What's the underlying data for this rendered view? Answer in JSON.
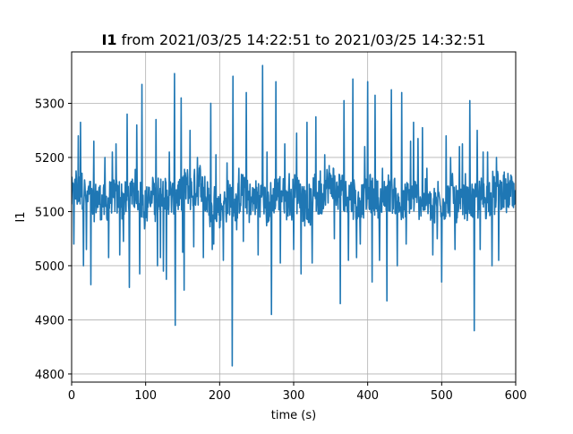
{
  "chart_data": {
    "type": "line",
    "title": {
      "bold": "I1",
      "rest": " from 2021/03/25 14:22:51 to 2021/03/25 14:32:51"
    },
    "xlabel": "time (s)",
    "ylabel": "I1",
    "xlim": [
      0,
      600
    ],
    "ylim": [
      4785,
      5395
    ],
    "xticks": [
      0,
      100,
      200,
      300,
      400,
      500,
      600
    ],
    "yticks": [
      4800,
      4900,
      5000,
      5100,
      5200,
      5300
    ],
    "grid": true,
    "legend": "none",
    "colors": {
      "series": "#1f77b4",
      "grid": "#b0b0b0",
      "axis": "#000000"
    },
    "series": [
      {
        "color": "#1f77b4",
        "baseline": 5125,
        "x_start": 0,
        "x_end": 600,
        "x_step": 0.5,
        "spikes": [
          [
            3,
            5040
          ],
          [
            6,
            5175
          ],
          [
            9,
            5240
          ],
          [
            12,
            5265
          ],
          [
            16,
            5000
          ],
          [
            20,
            5030
          ],
          [
            26,
            4965
          ],
          [
            30,
            5230
          ],
          [
            45,
            5200
          ],
          [
            50,
            5015
          ],
          [
            55,
            5210
          ],
          [
            60,
            5225
          ],
          [
            65,
            5020
          ],
          [
            70,
            5045
          ],
          [
            75,
            5280
          ],
          [
            78,
            4960
          ],
          [
            82,
            5160
          ],
          [
            88,
            5260
          ],
          [
            92,
            4985
          ],
          [
            95,
            5335
          ],
          [
            104,
            5145
          ],
          [
            110,
            5160
          ],
          [
            114,
            5270
          ],
          [
            116,
            5000
          ],
          [
            120,
            5015
          ],
          [
            124,
            4990
          ],
          [
            128,
            4975
          ],
          [
            132,
            5210
          ],
          [
            139,
            5355
          ],
          [
            140,
            4890
          ],
          [
            148,
            5310
          ],
          [
            150,
            5025
          ],
          [
            152,
            4955
          ],
          [
            160,
            5250
          ],
          [
            165,
            5035
          ],
          [
            170,
            5200
          ],
          [
            178,
            5015
          ],
          [
            180,
            5165
          ],
          [
            188,
            5300
          ],
          [
            190,
            5030
          ],
          [
            192,
            5040
          ],
          [
            195,
            5205
          ],
          [
            200,
            5070
          ],
          [
            205,
            5010
          ],
          [
            210,
            5190
          ],
          [
            217,
            4815
          ],
          [
            218,
            5350
          ],
          [
            226,
            5180
          ],
          [
            232,
            5045
          ],
          [
            236,
            5320
          ],
          [
            240,
            5080
          ],
          [
            252,
            5020
          ],
          [
            258,
            5370
          ],
          [
            264,
            5210
          ],
          [
            270,
            4910
          ],
          [
            276,
            5340
          ],
          [
            282,
            5005
          ],
          [
            288,
            5225
          ],
          [
            294,
            5170
          ],
          [
            300,
            5030
          ],
          [
            304,
            5245
          ],
          [
            310,
            4985
          ],
          [
            318,
            5265
          ],
          [
            325,
            5005
          ],
          [
            330,
            5275
          ],
          [
            336,
            5175
          ],
          [
            342,
            5205
          ],
          [
            348,
            5185
          ],
          [
            355,
            5050
          ],
          [
            363,
            4930
          ],
          [
            368,
            5305
          ],
          [
            374,
            5010
          ],
          [
            380,
            5345
          ],
          [
            385,
            5015
          ],
          [
            390,
            5040
          ],
          [
            396,
            5220
          ],
          [
            400,
            5340
          ],
          [
            406,
            4970
          ],
          [
            410,
            5315
          ],
          [
            416,
            5010
          ],
          [
            420,
            5180
          ],
          [
            426,
            4935
          ],
          [
            432,
            5325
          ],
          [
            440,
            5000
          ],
          [
            446,
            5320
          ],
          [
            452,
            5040
          ],
          [
            458,
            5230
          ],
          [
            462,
            5265
          ],
          [
            468,
            5235
          ],
          [
            474,
            5255
          ],
          [
            480,
            5180
          ],
          [
            488,
            5020
          ],
          [
            494,
            5050
          ],
          [
            500,
            4970
          ],
          [
            506,
            5240
          ],
          [
            512,
            5200
          ],
          [
            518,
            5030
          ],
          [
            524,
            5220
          ],
          [
            528,
            5225
          ],
          [
            532,
            5170
          ],
          [
            538,
            5305
          ],
          [
            544,
            4880
          ],
          [
            548,
            5250
          ],
          [
            552,
            5030
          ],
          [
            556,
            5210
          ],
          [
            562,
            5210
          ],
          [
            568,
            5000
          ],
          [
            574,
            5200
          ],
          [
            577,
            5010
          ]
        ]
      }
    ]
  }
}
